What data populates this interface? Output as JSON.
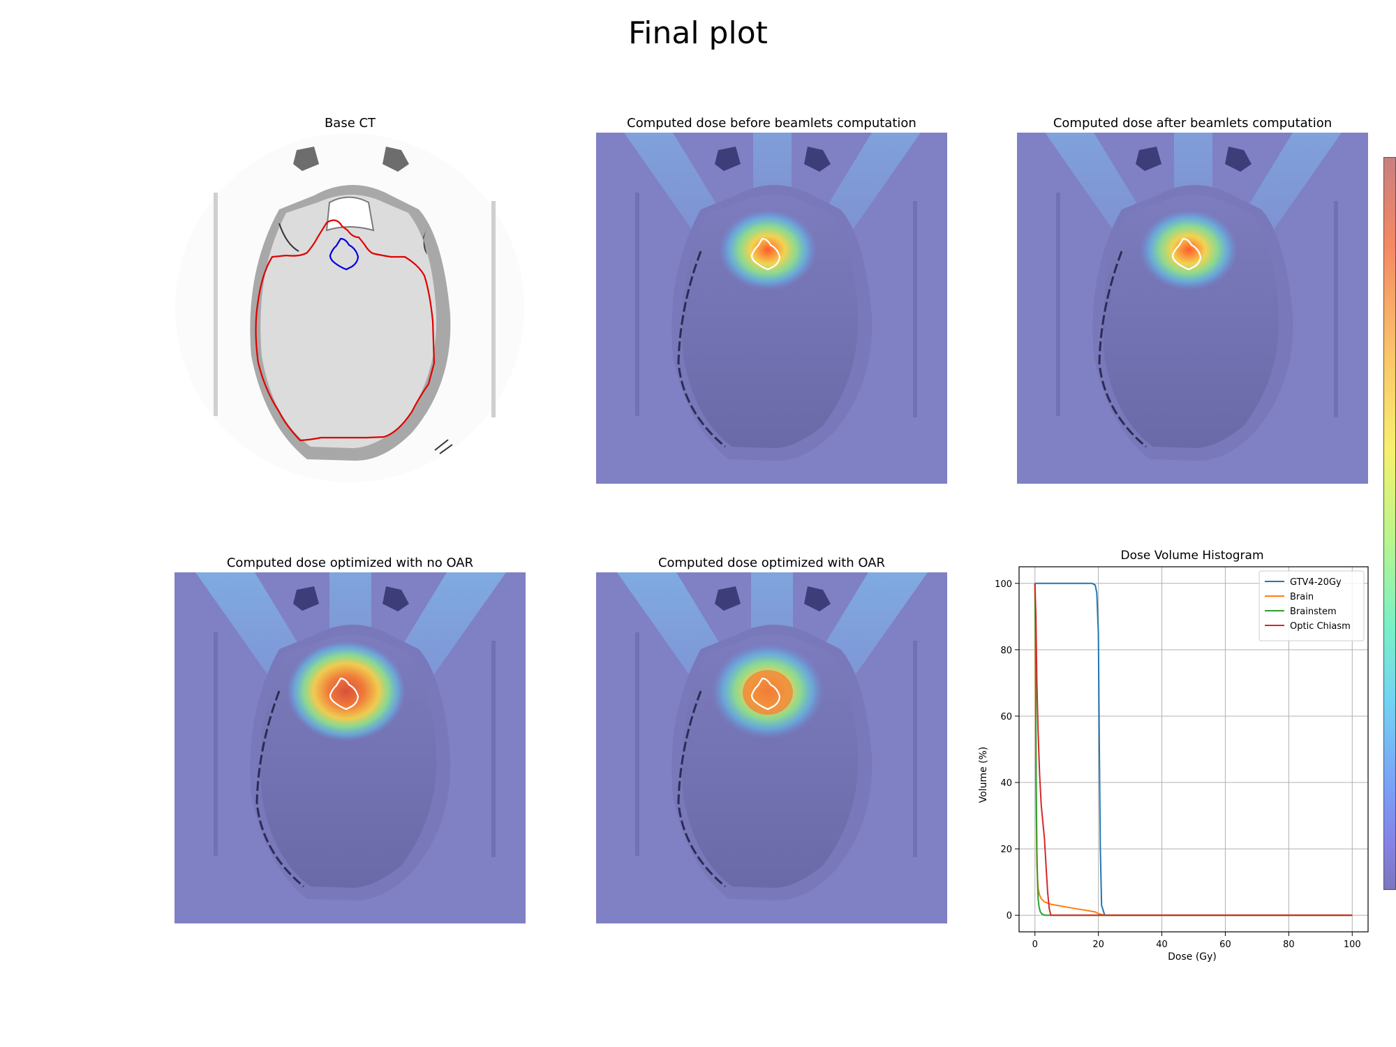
{
  "suptitle": "Final plot",
  "panels": {
    "base_ct": "Base CT",
    "dose_before": "Computed dose before beamlets computation",
    "dose_after": "Computed dose after beamlets computation",
    "opt_no_oar": "Computed dose optimized with no OAR",
    "opt_oar": "Computed dose optimized with OAR"
  },
  "colors": {
    "gtv": "#1f77b4",
    "brain": "#ff7f0e",
    "brainstem": "#2ca02c",
    "chiasm": "#d62728",
    "ct_brain_contour": "#e00000",
    "ct_target_contour": "#0000dd",
    "dose_background": "#8080c4"
  },
  "chart_data": {
    "type": "line",
    "title": "Dose Volume Histogram",
    "xlabel": "Dose (Gy)",
    "ylabel": "Volume (%)",
    "xlim": [
      -5,
      105
    ],
    "ylim": [
      -5,
      105
    ],
    "xticks": [
      0,
      20,
      40,
      60,
      80,
      100
    ],
    "yticks": [
      0,
      20,
      40,
      60,
      80,
      100
    ],
    "grid": true,
    "legend_position": "top-right",
    "series": [
      {
        "name": "GTV4-20Gy",
        "color": "#1f77b4",
        "x": [
          0,
          18,
          19,
          19.5,
          20,
          20.3,
          20.6,
          21,
          22,
          100
        ],
        "y": [
          100,
          100,
          99.5,
          97,
          85,
          50,
          20,
          3,
          0,
          0
        ]
      },
      {
        "name": "Brain",
        "color": "#ff7f0e",
        "x": [
          0,
          0.3,
          0.6,
          1,
          1.5,
          2,
          3,
          5,
          8,
          12,
          16,
          19,
          20,
          22,
          100
        ],
        "y": [
          100,
          40,
          15,
          8,
          6,
          5,
          4,
          3.3,
          2.8,
          2.1,
          1.5,
          1,
          0.5,
          0,
          0
        ]
      },
      {
        "name": "Brainstem",
        "color": "#2ca02c",
        "x": [
          0,
          0.2,
          0.4,
          0.6,
          0.8,
          1,
          1.3,
          1.7,
          2.2,
          3,
          100
        ],
        "y": [
          100,
          80,
          40,
          20,
          10,
          5,
          2.5,
          1,
          0.4,
          0,
          0
        ]
      },
      {
        "name": "Optic Chiasm",
        "color": "#d62728",
        "x": [
          0,
          0.3,
          0.6,
          1,
          1.5,
          2,
          2.5,
          3,
          3.5,
          4,
          4.5,
          5,
          100
        ],
        "y": [
          100,
          90,
          70,
          55,
          42,
          33,
          28,
          23,
          15,
          7,
          2,
          0,
          0
        ]
      }
    ]
  }
}
